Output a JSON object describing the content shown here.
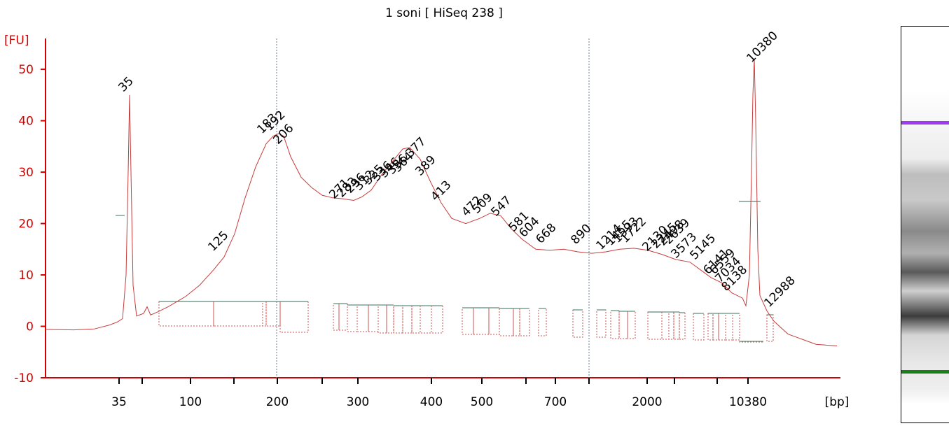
{
  "chart_data": {
    "type": "line",
    "title": "1 soni  [ HiSeq 238 ]",
    "ylabel": "[FU]",
    "xlabel": "[bp]",
    "ylim": [
      -10,
      56
    ],
    "yticks": [
      -10,
      0,
      10,
      20,
      30,
      40,
      50
    ],
    "x_scale": "ladder (non-linear migration, plotted vs. time index)",
    "xticks": [
      "35",
      "",
      "100",
      "",
      "200",
      "",
      "300",
      "400",
      "500",
      "",
      "700",
      "",
      "2000",
      "",
      "",
      "10380"
    ],
    "colors": {
      "trace": "#c83c3c",
      "axis": "#d40000",
      "marker_lower": "#2a8a2a",
      "marker_upper": "#a03cf0",
      "region_bar": "#5a8a7a"
    },
    "markers": [
      {
        "label": "35",
        "color": "#2a8a2a"
      },
      {
        "label": "10380",
        "color": "#a03cf0"
      }
    ],
    "peak_labels": [
      "125",
      "183",
      "192",
      "206",
      "271",
      "283",
      "296",
      "312",
      "325",
      "336",
      "346",
      "356",
      "364",
      "377",
      "389",
      "413",
      "472",
      "509",
      "547",
      "581",
      "604",
      "668",
      "890",
      "1214",
      "1455",
      "1593",
      "1722",
      "2130",
      "2245",
      "2498",
      "2639",
      "3573",
      "5145",
      "6141",
      "6559",
      "7034",
      "8138",
      "12988"
    ],
    "trace_points": [
      [
        0,
        -0.6
      ],
      [
        40,
        -0.7
      ],
      [
        70,
        -0.5
      ],
      [
        90,
        0.2
      ],
      [
        102,
        0.8
      ],
      [
        110,
        1.5
      ],
      [
        115,
        10
      ],
      [
        118,
        30
      ],
      [
        120,
        45
      ],
      [
        122,
        30
      ],
      [
        125,
        8
      ],
      [
        130,
        2
      ],
      [
        140,
        2.5
      ],
      [
        145,
        3.8
      ],
      [
        150,
        2.2
      ],
      [
        160,
        2.8
      ],
      [
        175,
        3.8
      ],
      [
        200,
        5.8
      ],
      [
        220,
        8
      ],
      [
        240,
        11
      ],
      [
        255,
        13.5
      ],
      [
        270,
        18
      ],
      [
        285,
        25
      ],
      [
        300,
        31
      ],
      [
        315,
        35.5
      ],
      [
        325,
        37
      ],
      [
        333,
        37.5
      ],
      [
        340,
        37
      ],
      [
        350,
        33
      ],
      [
        365,
        29
      ],
      [
        380,
        27
      ],
      [
        395,
        25.5
      ],
      [
        410,
        25
      ],
      [
        425,
        24.8
      ],
      [
        440,
        24.5
      ],
      [
        452,
        25.2
      ],
      [
        465,
        26.5
      ],
      [
        480,
        29.5
      ],
      [
        495,
        32
      ],
      [
        510,
        34.5
      ],
      [
        520,
        34.8
      ],
      [
        535,
        32.5
      ],
      [
        550,
        28
      ],
      [
        565,
        24
      ],
      [
        580,
        21
      ],
      [
        600,
        20
      ],
      [
        620,
        21
      ],
      [
        635,
        22
      ],
      [
        650,
        21.5
      ],
      [
        665,
        19
      ],
      [
        680,
        17
      ],
      [
        700,
        15
      ],
      [
        720,
        14.8
      ],
      [
        740,
        15
      ],
      [
        760,
        14.5
      ],
      [
        780,
        14.2
      ],
      [
        800,
        14.5
      ],
      [
        820,
        15
      ],
      [
        840,
        15.2
      ],
      [
        860,
        14.8
      ],
      [
        880,
        14
      ],
      [
        900,
        13
      ],
      [
        920,
        12.5
      ],
      [
        935,
        11
      ],
      [
        950,
        9.5
      ],
      [
        965,
        8.5
      ],
      [
        980,
        6.5
      ],
      [
        995,
        5.5
      ],
      [
        1000,
        4
      ],
      [
        1005,
        10
      ],
      [
        1008,
        30
      ],
      [
        1010,
        45
      ],
      [
        1012,
        52
      ],
      [
        1014,
        40
      ],
      [
        1017,
        15
      ],
      [
        1020,
        6
      ],
      [
        1030,
        3
      ],
      [
        1040,
        1
      ],
      [
        1060,
        -1.5
      ],
      [
        1080,
        -2.5
      ],
      [
        1100,
        -3.5
      ],
      [
        1130,
        -3.8
      ]
    ]
  }
}
